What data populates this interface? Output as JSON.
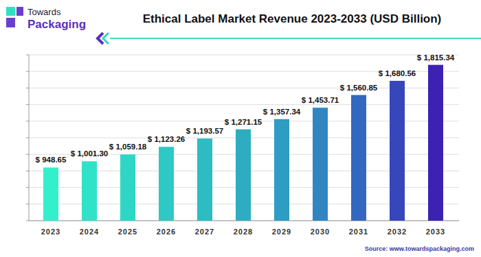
{
  "chart_data": {
    "type": "bar",
    "title": "Ethical Label Market Revenue 2023-2033 (USD Billion)",
    "annotations": [
      "Towards",
      "Packaging",
      "Source: www.towardspackaging.com"
    ],
    "categories": [
      "2023",
      "2024",
      "2025",
      "2026",
      "2027",
      "2028",
      "2029",
      "2030",
      "2031",
      "2032",
      "2033"
    ],
    "values": [
      948.65,
      1001.3,
      1059.18,
      1123.26,
      1193.57,
      1271.15,
      1357.34,
      1453.71,
      1560.85,
      1680.56,
      1815.34
    ],
    "value_labels": [
      "$ 948.65",
      "$ 1,001.30",
      "$ 1,059.18",
      "$ 1,123.26",
      "$ 1,193.57",
      "$ 1,271.15",
      "$ 1,357.34",
      "$ 1,453.71",
      "$ 1,560.85",
      "$ 1,680.56",
      "$ 1,815.34"
    ],
    "colors": [
      "#33efcc",
      "#30e3c8",
      "#2fd6c6",
      "#2ec9c4",
      "#2dbcc2",
      "#2eadc1",
      "#2f9cc1",
      "#3186c2",
      "#3468c0",
      "#3746ba",
      "#3b22b2"
    ],
    "ylim": [
      500,
      1900
    ],
    "yticks": [
      500,
      640,
      780,
      920,
      1060,
      1200,
      1340,
      1480,
      1620,
      1760,
      1900
    ],
    "grid": true,
    "data_labels": true,
    "tick_labels": "x"
  }
}
